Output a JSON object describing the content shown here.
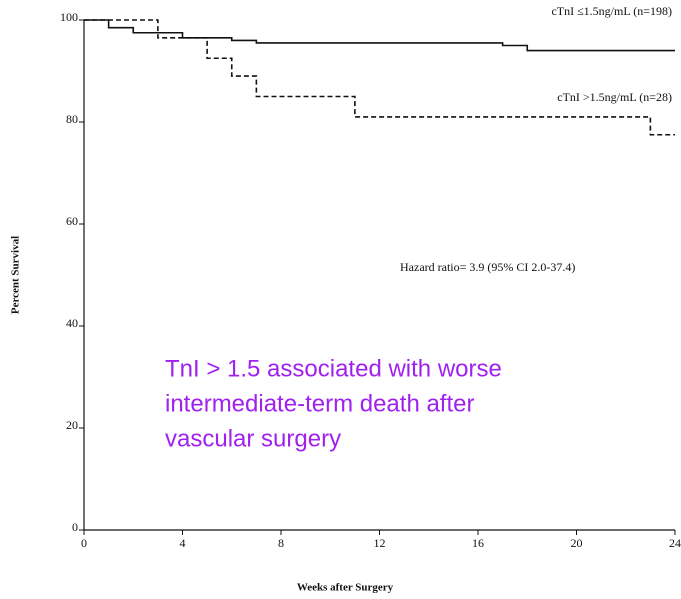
{
  "chart_data": {
    "type": "line",
    "step": "post",
    "xlabel": "Weeks after Surgery",
    "ylabel": "Percent Survival",
    "xlim": [
      0,
      24
    ],
    "xticks": [
      0,
      4,
      8,
      12,
      16,
      20,
      24
    ],
    "ylim": [
      0,
      100
    ],
    "yticks": [
      0,
      20,
      40,
      60,
      80,
      100
    ],
    "series": [
      {
        "name": "cTnI ≤1.5ng/mL (n=198)",
        "color": "#111111",
        "line_style": "solid",
        "x": [
          0,
          1,
          2,
          4,
          6,
          7,
          17,
          18,
          24
        ],
        "values": [
          100,
          98.5,
          97.5,
          96.5,
          96,
          95.5,
          95,
          94,
          94
        ]
      },
      {
        "name": "cTnI >1.5ng/mL (n=28)",
        "color": "#111111",
        "line_style": "dashed",
        "x": [
          0,
          3,
          5,
          6,
          7,
          11,
          23,
          24
        ],
        "values": [
          100,
          96.5,
          92.5,
          89,
          85,
          81,
          77.5,
          77.5
        ]
      }
    ],
    "annotations": [
      "Hazard ratio= 3.9 (95% CI 2.0-37.4)"
    ],
    "highlight_text": {
      "color": "#a020f0",
      "lines": [
        "TnI > 1.5 associated with worse",
        "intermediate-term death after",
        "vascular surgery"
      ]
    }
  }
}
